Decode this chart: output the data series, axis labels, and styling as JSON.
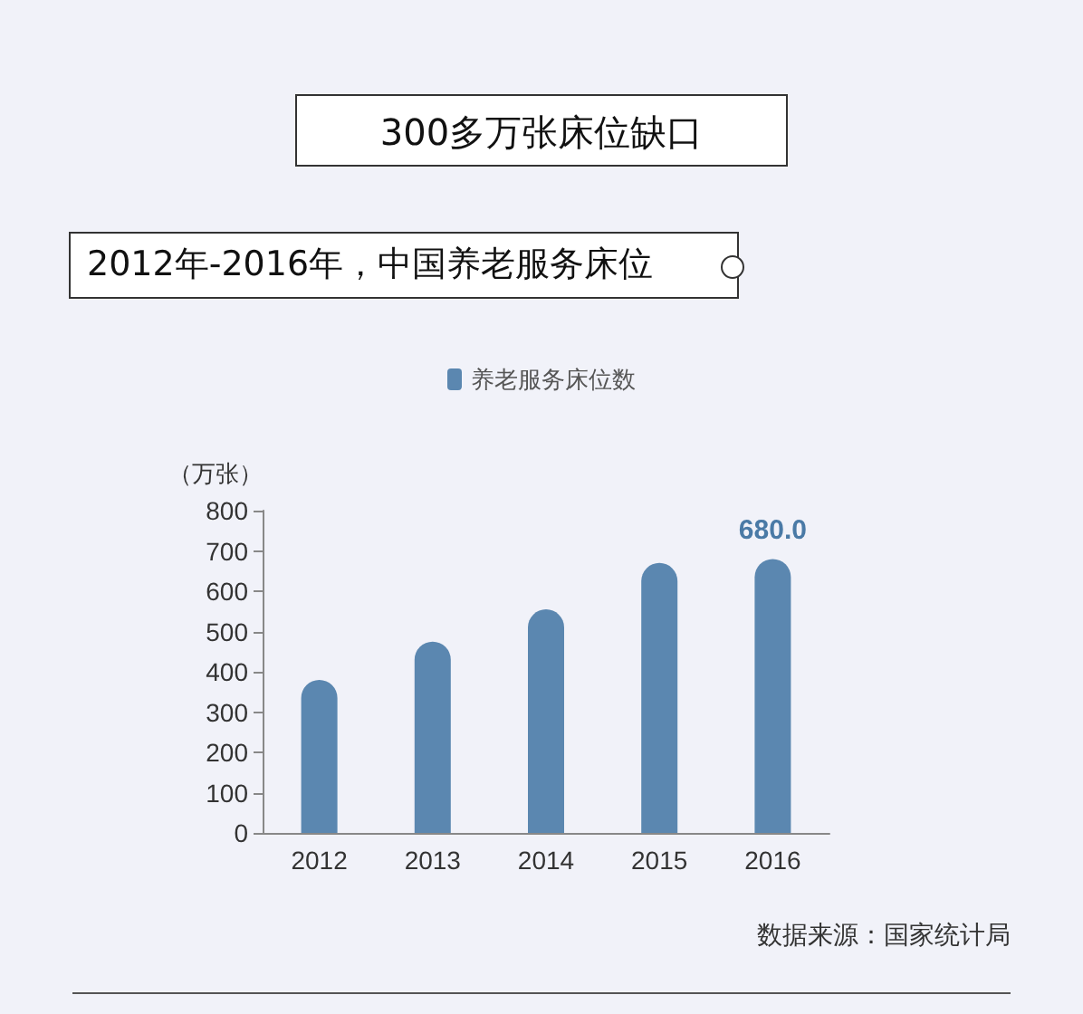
{
  "chart_data": {
    "type": "bar",
    "title": "300多万张床位缺口",
    "subtitle": "2012年-2016年，中国养老服务床位",
    "ylabel": "（万张）",
    "categories": [
      "2012",
      "2013",
      "2014",
      "2015",
      "2016"
    ],
    "series": [
      {
        "name": "养老服务床位数",
        "color": "#5b87b0",
        "values": [
          380,
          475,
          555,
          670,
          680
        ],
        "value_labels": [
          null,
          null,
          null,
          null,
          "680.0"
        ]
      }
    ],
    "ylim": [
      0,
      800
    ],
    "yticks": [
      0,
      100,
      200,
      300,
      400,
      500,
      600,
      700,
      800
    ],
    "grid": false,
    "legend": "top",
    "annotations": [
      "数据来源：国家统计局"
    ]
  }
}
